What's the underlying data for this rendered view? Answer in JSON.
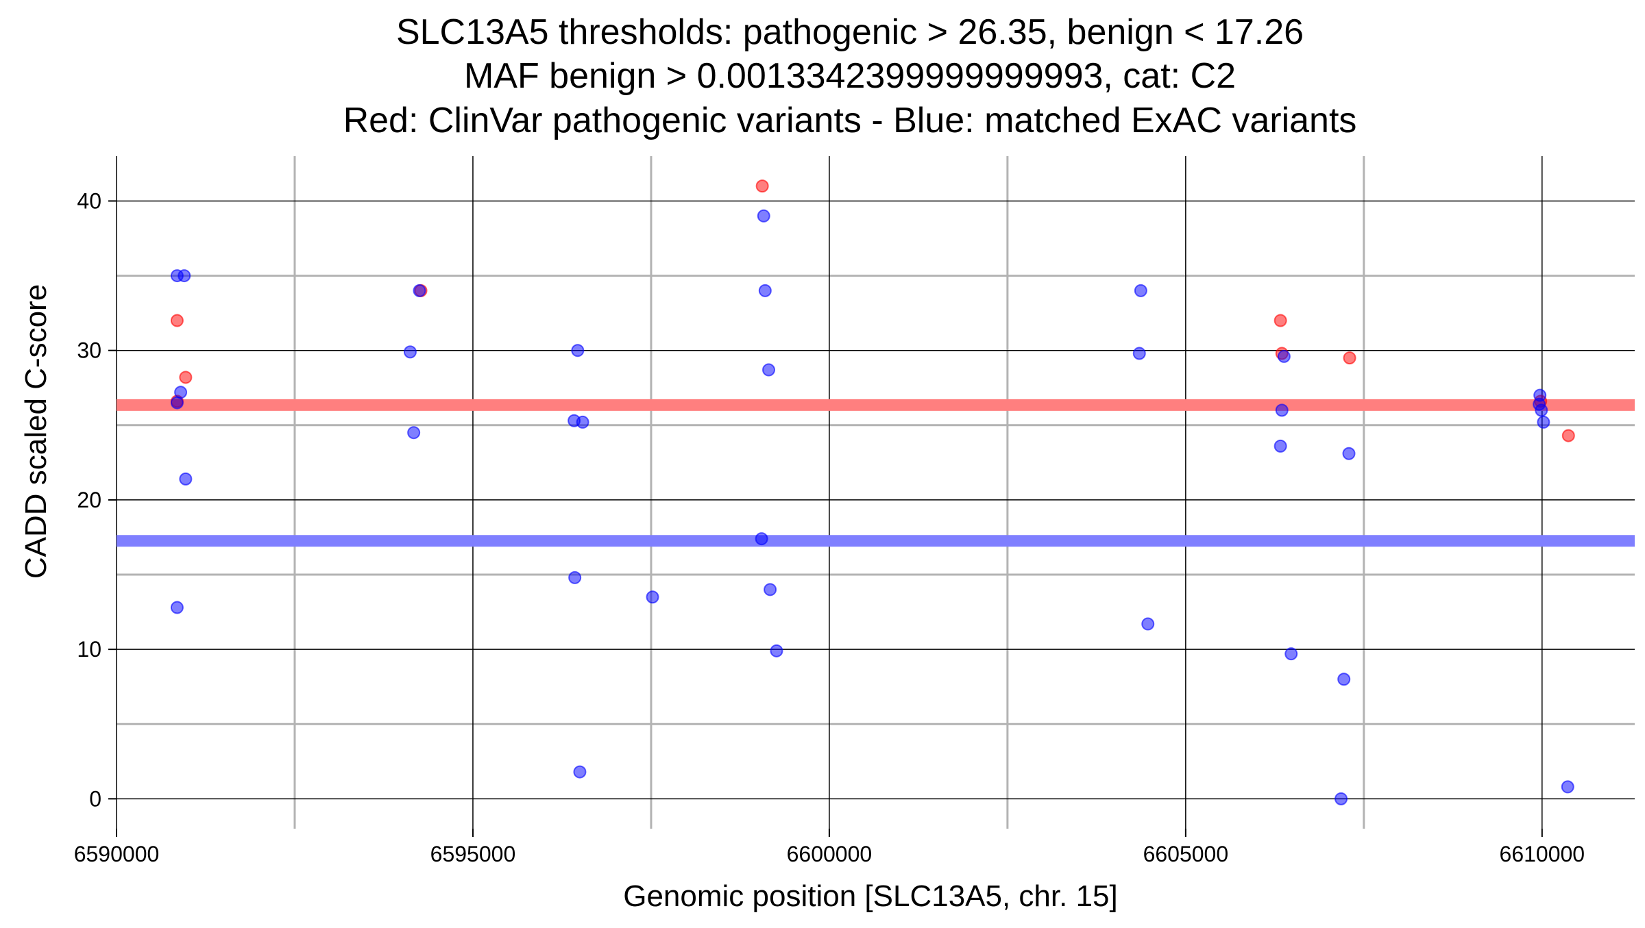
{
  "chart_data": {
    "type": "scatter",
    "title_lines": [
      "SLC13A5 thresholds: pathogenic > 26.35, benign < 17.26",
      "MAF benign > 0.0013342399999999993, cat: C2",
      "Red: ClinVar pathogenic variants - Blue: matched ExAC variants"
    ],
    "xlabel": "Genomic position [SLC13A5, chr. 15]",
    "ylabel": "CADD scaled C-score",
    "xlim": [
      6590000,
      6611300
    ],
    "ylim": [
      -2,
      43
    ],
    "x_ticks": [
      6590000,
      6595000,
      6600000,
      6605000,
      6610000
    ],
    "x_tick_labels": [
      "6590000",
      "6595000",
      "6600000",
      "6605000",
      "6610000"
    ],
    "y_ticks": [
      0,
      10,
      20,
      30,
      40
    ],
    "y_tick_labels": [
      "0",
      "10",
      "20",
      "30",
      "40"
    ],
    "x_minor_ticks": [
      6592500,
      6597500,
      6602500,
      6607500
    ],
    "y_minor_ticks": [
      5,
      15,
      25,
      35
    ],
    "grid": true,
    "thresholds": [
      {
        "name": "pathogenic",
        "value": 26.35,
        "color": "#ff7f7f"
      },
      {
        "name": "benign",
        "value": 17.26,
        "color": "#7f7fff"
      }
    ],
    "series": [
      {
        "name": "ClinVar pathogenic variants",
        "color": "#ff0000",
        "points": [
          [
            6590850,
            32
          ],
          [
            6590970,
            28.2
          ],
          [
            6590850,
            26.6
          ],
          [
            6594270,
            34
          ],
          [
            6599060,
            41
          ],
          [
            6606330,
            32
          ],
          [
            6606350,
            29.8
          ],
          [
            6607300,
            29.5
          ],
          [
            6609980,
            26.6
          ],
          [
            6610370,
            24.3
          ]
        ]
      },
      {
        "name": "matched ExAC variants",
        "color": "#0000ff",
        "points": [
          [
            6590850,
            35
          ],
          [
            6590950,
            35
          ],
          [
            6590900,
            27.2
          ],
          [
            6590850,
            26.5
          ],
          [
            6590970,
            21.4
          ],
          [
            6590850,
            12.8
          ],
          [
            6594120,
            29.9
          ],
          [
            6594250,
            34
          ],
          [
            6594170,
            24.5
          ],
          [
            6596470,
            30
          ],
          [
            6596420,
            25.3
          ],
          [
            6596540,
            25.2
          ],
          [
            6596430,
            14.8
          ],
          [
            6596500,
            1.8
          ],
          [
            6597520,
            13.5
          ],
          [
            6599080,
            39
          ],
          [
            6599100,
            34
          ],
          [
            6599150,
            28.7
          ],
          [
            6599050,
            17.4
          ],
          [
            6599170,
            14
          ],
          [
            6599260,
            9.9
          ],
          [
            6604370,
            34
          ],
          [
            6604350,
            29.8
          ],
          [
            6604470,
            11.7
          ],
          [
            6606380,
            29.6
          ],
          [
            6606350,
            26
          ],
          [
            6606330,
            23.6
          ],
          [
            6606480,
            9.7
          ],
          [
            6607290,
            23.1
          ],
          [
            6607220,
            8
          ],
          [
            6607180,
            0
          ],
          [
            6609970,
            27
          ],
          [
            6609960,
            26.4
          ],
          [
            6609990,
            26
          ],
          [
            6610020,
            25.2
          ],
          [
            6610360,
            0.8
          ]
        ]
      }
    ]
  }
}
